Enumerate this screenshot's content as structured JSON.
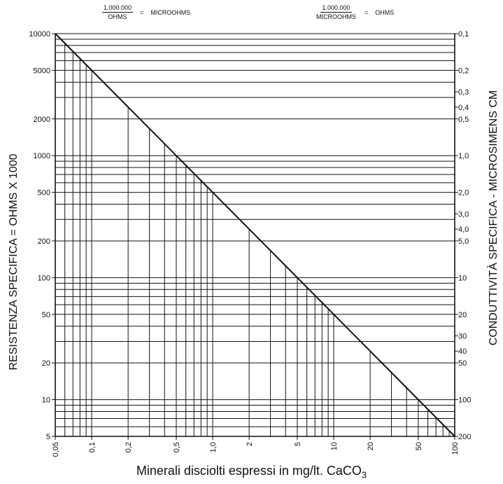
{
  "formulas": {
    "left": {
      "numerator": "1.000.000",
      "denominator": "OHMS",
      "operator": "=",
      "result": "MICROOHMS"
    },
    "right": {
      "numerator": "1.000.000",
      "denominator": "MICROOHMS",
      "operator": "=",
      "result": "OHMS"
    }
  },
  "chart_data": {
    "type": "line",
    "xlabel_main": "Minerali disciolti espressi in mg/lt. CaCO",
    "xlabel_sub": "3",
    "ylabel_left": "RESISTENZA SPECIFICA = OHMS X 1000",
    "ylabel_right": "CONDUTTIVITÀ SPECIFICA - MICROSIMENS CM",
    "x_scale": "log",
    "y_scale": "log",
    "xlim": [
      0.05,
      100
    ],
    "ylim_left": [
      5,
      10000
    ],
    "ylim_right": [
      0.1,
      200
    ],
    "x_ticks": [
      {
        "value": 0.05,
        "label": "0,05"
      },
      {
        "value": 0.1,
        "label": "0,1"
      },
      {
        "value": 0.2,
        "label": "0,2"
      },
      {
        "value": 0.5,
        "label": "0,5"
      },
      {
        "value": 1,
        "label": "1,0"
      },
      {
        "value": 2,
        "label": "2"
      },
      {
        "value": 5,
        "label": "5"
      },
      {
        "value": 10,
        "label": "10"
      },
      {
        "value": 20,
        "label": "20"
      },
      {
        "value": 50,
        "label": "50"
      },
      {
        "value": 100,
        "label": "100"
      }
    ],
    "y_ticks_left": [
      {
        "value": 10000,
        "label": "10000"
      },
      {
        "value": 5000,
        "label": "5000"
      },
      {
        "value": 2000,
        "label": "2000"
      },
      {
        "value": 1000,
        "label": "1000"
      },
      {
        "value": 500,
        "label": "500"
      },
      {
        "value": 200,
        "label": "200"
      },
      {
        "value": 100,
        "label": "100"
      },
      {
        "value": 50,
        "label": "50"
      },
      {
        "value": 20,
        "label": "20"
      },
      {
        "value": 10,
        "label": "10"
      },
      {
        "value": 5,
        "label": "5"
      }
    ],
    "y_ticks_right": [
      {
        "value": 0.1,
        "label": "0,1"
      },
      {
        "value": 0.2,
        "label": "0,2"
      },
      {
        "value": 0.3,
        "label": "0,3"
      },
      {
        "value": 0.4,
        "label": "0,4"
      },
      {
        "value": 0.5,
        "label": "0,5"
      },
      {
        "value": 1,
        "label": "1,0"
      },
      {
        "value": 2,
        "label": "2,0"
      },
      {
        "value": 3,
        "label": "3,0"
      },
      {
        "value": 4,
        "label": "4,0"
      },
      {
        "value": 5,
        "label": "5,0"
      },
      {
        "value": 10,
        "label": "10"
      },
      {
        "value": 20,
        "label": "20"
      },
      {
        "value": 30,
        "label": "30"
      },
      {
        "value": 40,
        "label": "40"
      },
      {
        "value": 50,
        "label": "50"
      },
      {
        "value": 100,
        "label": "100"
      },
      {
        "value": 200,
        "label": "200"
      }
    ],
    "series": [
      {
        "x": [
          0.05,
          100
        ],
        "y": [
          10000,
          5
        ]
      }
    ],
    "grid": true
  }
}
